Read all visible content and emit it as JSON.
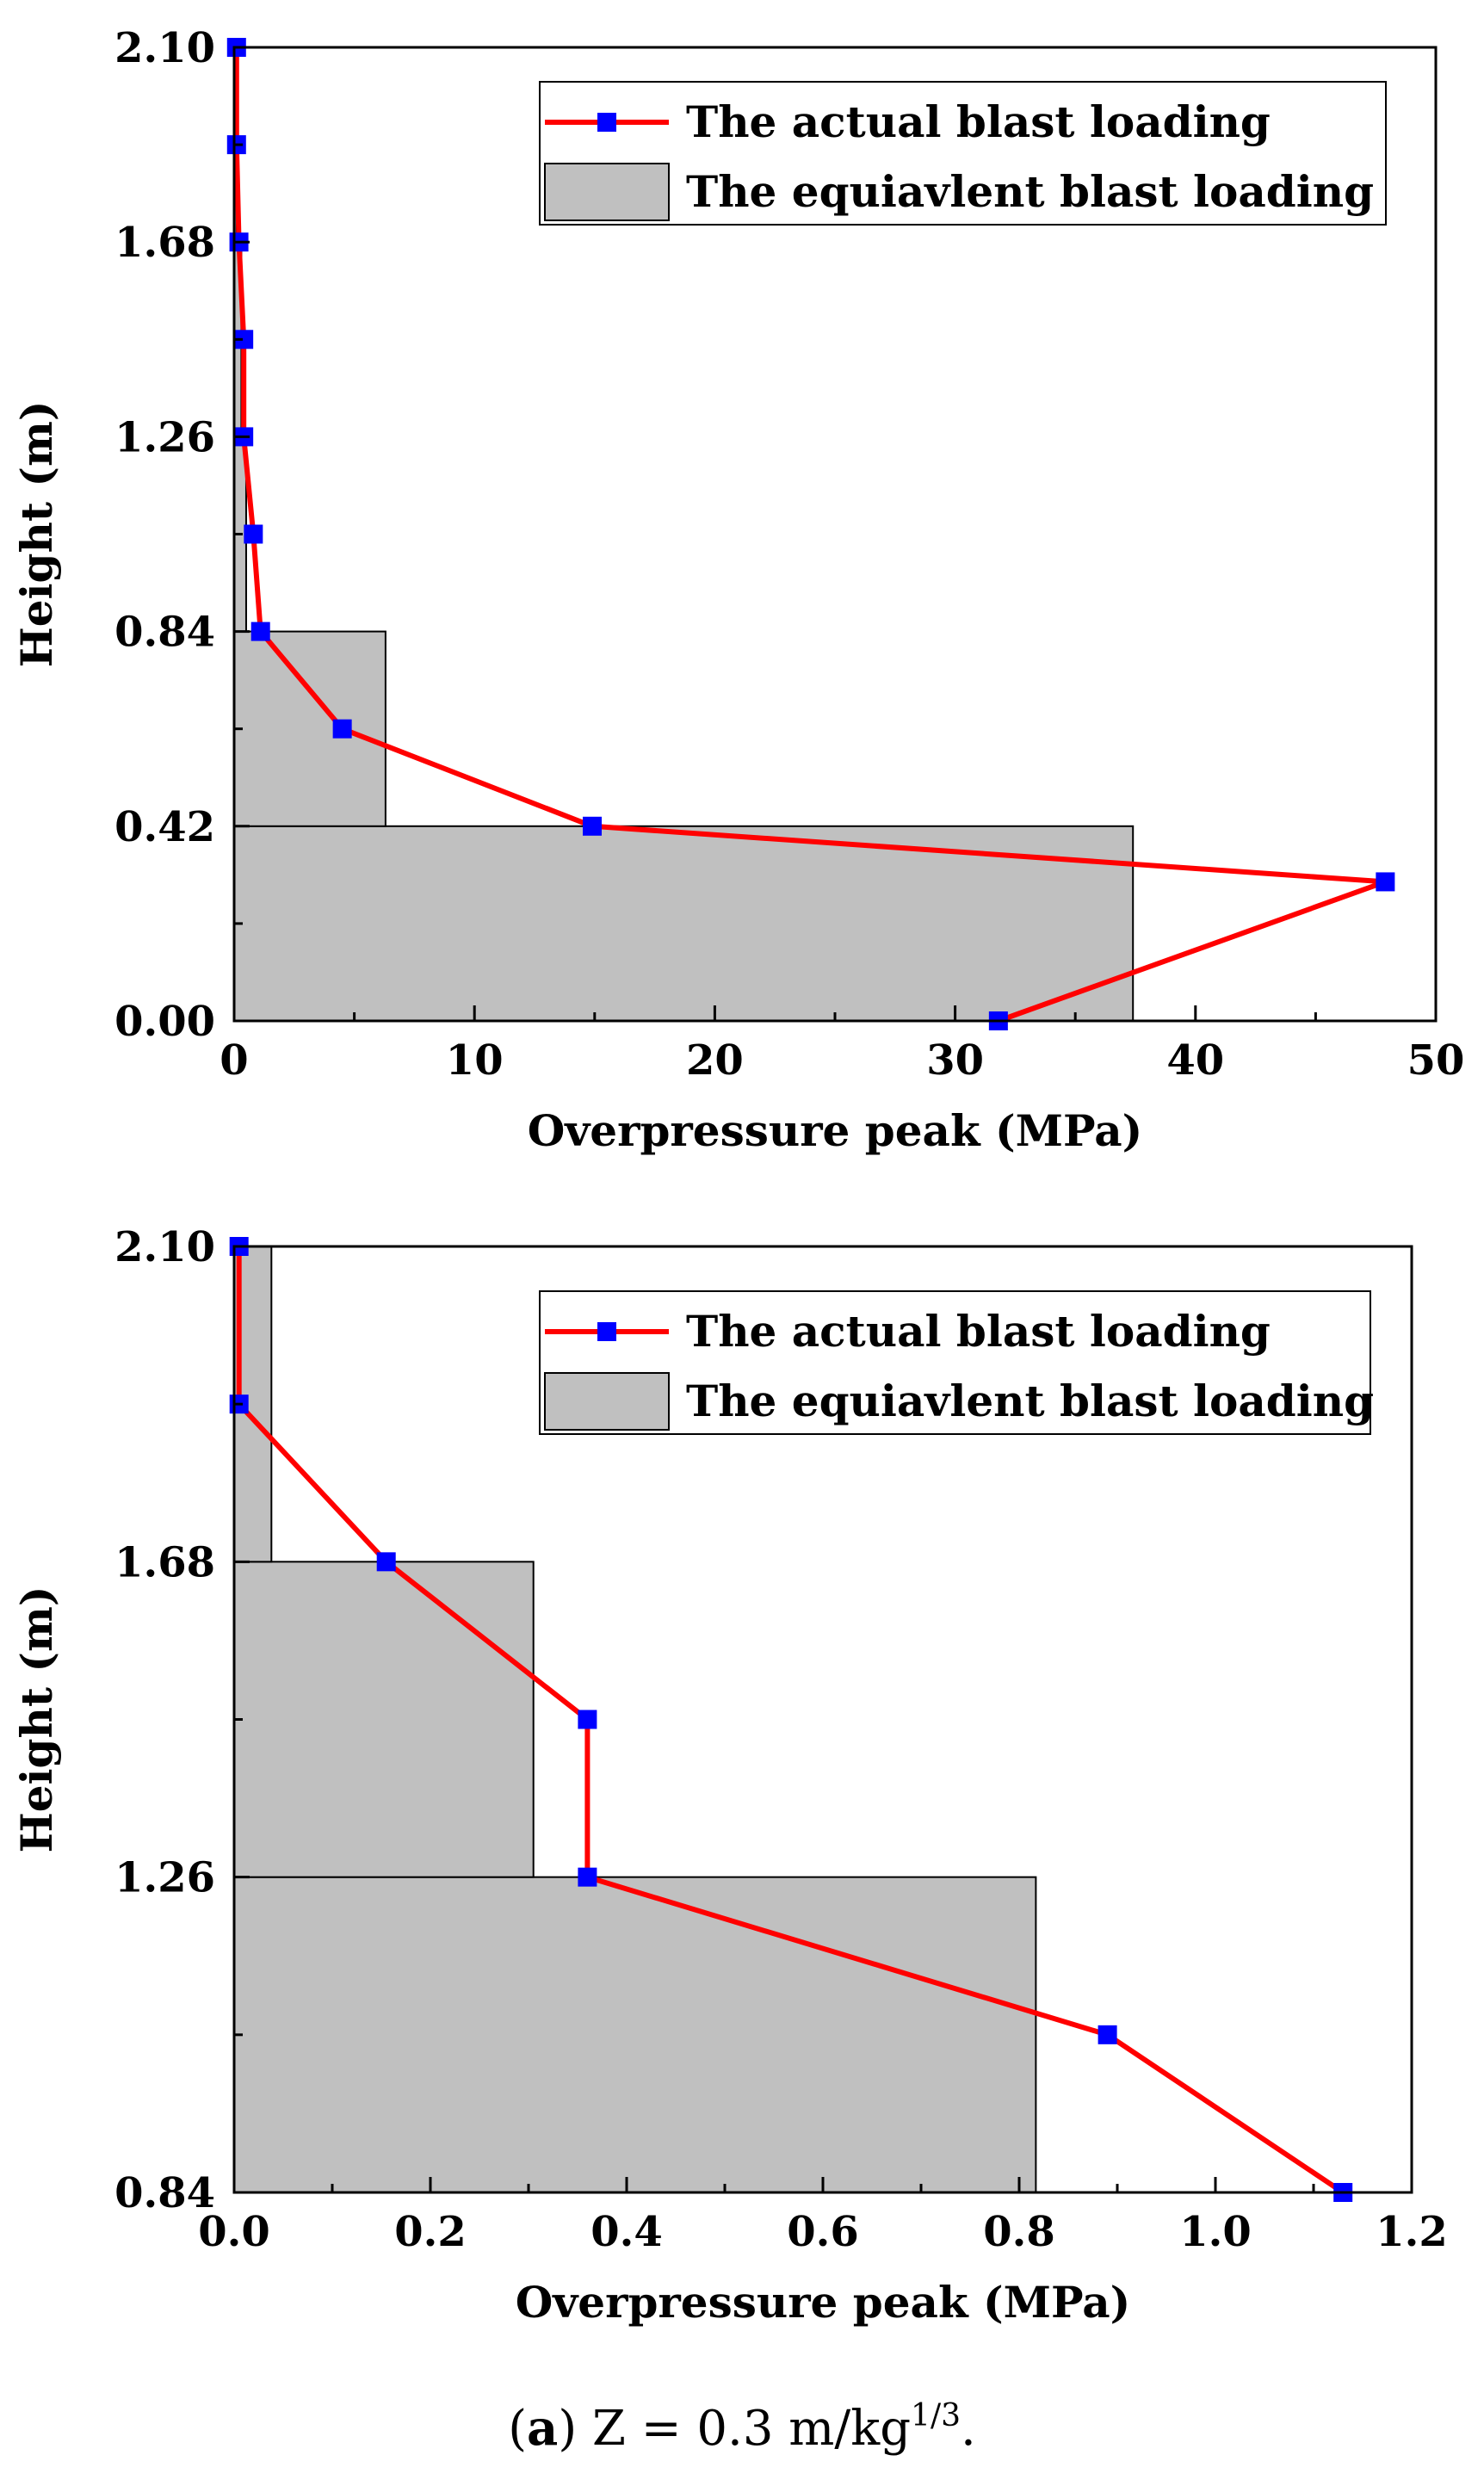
{
  "colors": {
    "line": "#ff0000",
    "marker": "#0000ff",
    "bar_fill": "#c0c0c0",
    "bar_stroke": "#000000",
    "axis": "#000000"
  },
  "chart_data": [
    {
      "type": "line+bar",
      "xlabel": "Overpressure peak (MPa)",
      "ylabel": "Height (m)",
      "xlim": [
        0,
        50
      ],
      "ylim": [
        0,
        2.1
      ],
      "xticks": [
        0,
        10,
        20,
        30,
        40,
        50
      ],
      "xtick_labels": [
        "0",
        "10",
        "20",
        "30",
        "40",
        "50"
      ],
      "yticks": [
        0,
        0.42,
        0.84,
        1.26,
        1.68,
        2.1
      ],
      "ytick_labels": [
        "0.00",
        "0.42",
        "0.84",
        "1.26",
        "1.68",
        "2.10"
      ],
      "legend": [
        "The actual blast loading",
        "The equiavlent blast loading"
      ],
      "legend_position": "top-right",
      "series": [
        {
          "name": "The actual blast loading",
          "kind": "line",
          "x": [
            31.8,
            47.9,
            14.9,
            4.5,
            1.1,
            0.8,
            0.4,
            0.4,
            0.2,
            0.1,
            0.1
          ],
          "y": [
            0.0,
            0.3,
            0.42,
            0.63,
            0.84,
            1.05,
            1.26,
            1.47,
            1.68,
            1.89,
            2.1
          ]
        },
        {
          "name": "The equiavlent blast loading",
          "kind": "bar",
          "segments": [
            {
              "y0": 0.0,
              "y1": 0.42,
              "value": 37.4
            },
            {
              "y0": 0.42,
              "y1": 0.84,
              "value": 6.3
            },
            {
              "y0": 0.84,
              "y1": 1.26,
              "value": 0.5
            },
            {
              "y0": 1.26,
              "y1": 1.68,
              "value": 0.3
            },
            {
              "y0": 1.68,
              "y1": 2.1,
              "value": 0.1
            }
          ]
        }
      ]
    },
    {
      "type": "line+bar",
      "xlabel": "Overpressure peak (MPa)",
      "ylabel": "Height (m)",
      "xlim": [
        0,
        1.2
      ],
      "ylim": [
        0.84,
        2.1
      ],
      "xticks": [
        0,
        0.2,
        0.4,
        0.6,
        0.8,
        1.0,
        1.2
      ],
      "xtick_labels": [
        "0.0",
        "0.2",
        "0.4",
        "0.6",
        "0.8",
        "1.0",
        "1.2"
      ],
      "yticks": [
        0.84,
        1.26,
        1.68,
        2.1
      ],
      "ytick_labels": [
        "0.84",
        "1.26",
        "1.68",
        "2.10"
      ],
      "legend": [
        "The actual blast loading",
        "The equiavlent blast loading"
      ],
      "legend_position": "top-right",
      "series": [
        {
          "name": "The actual blast loading",
          "kind": "line",
          "x": [
            1.13,
            0.89,
            0.36,
            0.36,
            0.155,
            0.005,
            0.005
          ],
          "y": [
            0.84,
            1.05,
            1.26,
            1.47,
            1.68,
            1.89,
            2.1
          ]
        },
        {
          "name": "The equiavlent blast loading",
          "kind": "bar",
          "segments": [
            {
              "y0": 0.84,
              "y1": 1.26,
              "value": 0.817
            },
            {
              "y0": 1.26,
              "y1": 1.68,
              "value": 0.305
            },
            {
              "y0": 1.68,
              "y1": 2.1,
              "value": 0.038
            }
          ]
        }
      ]
    }
  ],
  "caption": {
    "open": "(",
    "letter": "a",
    "text": ") Z = 0.3 m/kg",
    "sup": "1/3",
    "end": "."
  }
}
